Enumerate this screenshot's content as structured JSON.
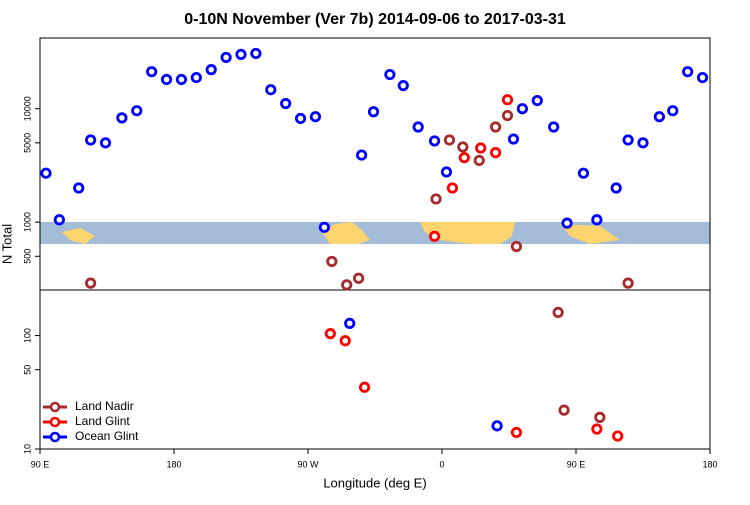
{
  "chart_data": {
    "type": "scatter",
    "title": "0-10N November (Ver 7b)   2014-09-06 to 2017-03-31",
    "x_label": "Longitude (deg E)",
    "y_label": "N Total",
    "log_y": true,
    "legend": "lower-left",
    "xlim": [
      90,
      540
    ],
    "xticks": [
      {
        "value": 90,
        "label": "90 E"
      },
      {
        "value": 180,
        "label": "180"
      },
      {
        "value": 270,
        "label": "90 W"
      },
      {
        "value": 360,
        "label": "0"
      },
      {
        "value": 450,
        "label": "90 E"
      },
      {
        "value": 540,
        "label": "180"
      }
    ],
    "ylim": [
      10,
      42000
    ],
    "yticks": [
      10,
      50,
      100,
      500,
      1000,
      5000,
      10000
    ],
    "series": [
      {
        "name": "Land Nadir",
        "color": "#a52a2a",
        "x": [
          124,
          286,
          296,
          304,
          356,
          365,
          374,
          385,
          396,
          404,
          410,
          438,
          442,
          466,
          485
        ],
        "values": [
          290,
          450,
          280,
          320,
          1600,
          5300,
          4600,
          3500,
          6900,
          8700,
          610,
          160,
          22,
          19,
          290
        ]
      },
      {
        "name": "Land Glint",
        "color": "#ff0000",
        "x": [
          285,
          295,
          308,
          355,
          367,
          375,
          386,
          396,
          404,
          410,
          464,
          478
        ],
        "values": [
          104,
          90,
          35,
          750,
          2000,
          3700,
          4500,
          4100,
          12000,
          14,
          15,
          13
        ]
      },
      {
        "name": "Ocean Glint",
        "color": "#0000ff",
        "x": [
          94,
          103,
          116,
          124,
          134,
          145,
          155,
          165,
          175,
          185,
          195,
          205,
          215,
          225,
          235,
          245,
          255,
          265,
          275,
          281,
          298,
          306,
          314,
          325,
          334,
          344,
          355,
          363,
          397,
          408,
          414,
          424,
          435,
          444,
          455,
          464,
          477,
          485,
          495,
          506,
          515,
          525,
          535
        ],
        "values": [
          2700,
          1050,
          2000,
          5300,
          5000,
          8300,
          9600,
          21200,
          18100,
          18100,
          18800,
          22100,
          28300,
          30100,
          30700,
          14700,
          11100,
          8200,
          8500,
          900,
          128,
          3900,
          9400,
          20000,
          16000,
          6900,
          5200,
          2770,
          16,
          5400,
          10000,
          11800,
          6900,
          980,
          2700,
          1050,
          2000,
          5300,
          5000,
          8500,
          9600,
          21200,
          18800
        ]
      }
    ]
  }
}
